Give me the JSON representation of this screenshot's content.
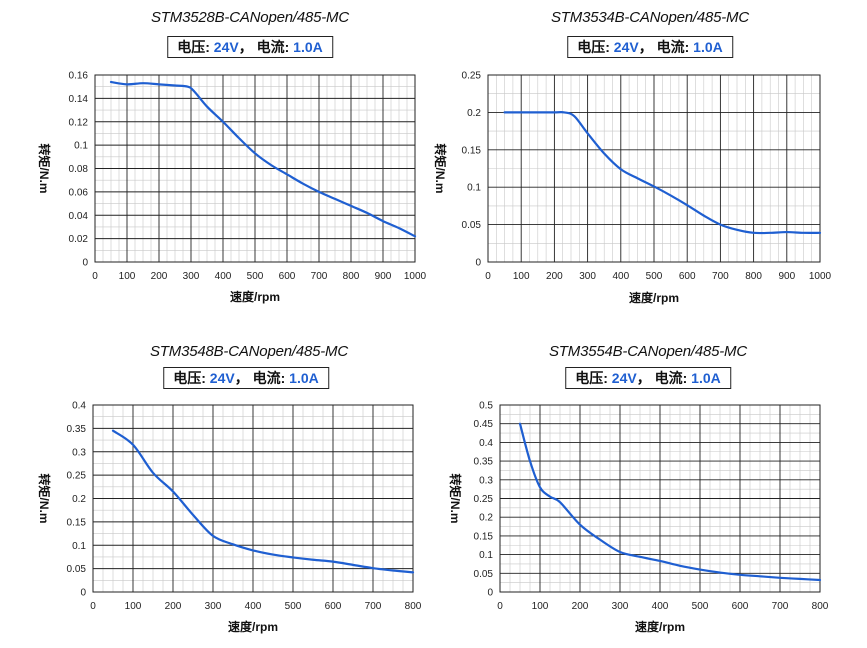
{
  "colors": {
    "curve": "#1f5fd1",
    "value_text": "#1f5fd1",
    "grid_major": "#222222",
    "grid_minor": "#c8c8c8"
  },
  "chart_data": [
    {
      "type": "line",
      "title": "STM3528B-CANopen/485-MC",
      "conditions": {
        "voltage_label": "电压:",
        "voltage": "24V",
        "sep": "，",
        "current_label": "电流:",
        "current": "1.0A"
      },
      "xlabel": "速度/rpm",
      "ylabel": "转矩/N.m",
      "xlim": [
        0,
        1000
      ],
      "ylim": [
        0,
        0.16
      ],
      "x_ticks": [
        0,
        100,
        200,
        300,
        400,
        500,
        600,
        700,
        800,
        900,
        1000
      ],
      "x_tick_labels": [
        "0",
        "100",
        "200",
        "300",
        "400",
        "500",
        "600",
        "700",
        "800",
        "900",
        "1000"
      ],
      "y_ticks": [
        0,
        0.02,
        0.04,
        0.06,
        0.08,
        0.1,
        0.12,
        0.14,
        0.16
      ],
      "y_tick_labels": [
        "0",
        "0.02",
        "0.04",
        "0.06",
        "0.08",
        "0.1",
        "0.12",
        "0.14",
        "0.16"
      ],
      "x_minor_divisions": 4,
      "y_minor_divisions": 2,
      "grid": true,
      "series": [
        {
          "x": [
            50,
            100,
            150,
            200,
            250,
            290,
            310,
            350,
            400,
            450,
            500,
            550,
            600,
            650,
            700,
            750,
            800,
            850,
            900,
            950,
            1000
          ],
          "y": [
            0.154,
            0.152,
            0.153,
            0.152,
            0.151,
            0.15,
            0.146,
            0.133,
            0.12,
            0.106,
            0.093,
            0.083,
            0.075,
            0.067,
            0.06,
            0.054,
            0.048,
            0.042,
            0.035,
            0.029,
            0.022
          ]
        }
      ]
    },
    {
      "type": "line",
      "title": "STM3534B-CANopen/485-MC",
      "conditions": {
        "voltage_label": "电压:",
        "voltage": "24V",
        "sep": "，",
        "current_label": "电流:",
        "current": "1.0A"
      },
      "xlabel": "速度/rpm",
      "ylabel": "转矩/N.m",
      "xlim": [
        0,
        1000
      ],
      "ylim": [
        0,
        0.25
      ],
      "x_ticks": [
        0,
        100,
        200,
        300,
        400,
        500,
        600,
        700,
        800,
        900,
        1000
      ],
      "x_tick_labels": [
        "0",
        "100",
        "200",
        "300",
        "400",
        "500",
        "600",
        "700",
        "800",
        "900",
        "1000"
      ],
      "y_ticks": [
        0,
        0.05,
        0.1,
        0.15,
        0.2,
        0.25
      ],
      "y_tick_labels": [
        "0",
        "0.05",
        "0.1",
        "0.15",
        "0.2",
        "0.25"
      ],
      "x_minor_divisions": 4,
      "y_minor_divisions": 2,
      "grid": true,
      "series": [
        {
          "x": [
            50,
            100,
            150,
            200,
            230,
            260,
            300,
            350,
            400,
            450,
            500,
            550,
            600,
            650,
            700,
            750,
            800,
            850,
            900,
            950,
            1000
          ],
          "y": [
            0.2,
            0.2,
            0.2,
            0.2,
            0.2,
            0.195,
            0.172,
            0.145,
            0.124,
            0.112,
            0.101,
            0.089,
            0.076,
            0.062,
            0.05,
            0.043,
            0.039,
            0.039,
            0.04,
            0.039,
            0.039
          ]
        }
      ]
    },
    {
      "type": "line",
      "title": "STM3548B-CANopen/485-MC",
      "conditions": {
        "voltage_label": "电压:",
        "voltage": "24V",
        "sep": "，",
        "current_label": "电流:",
        "current": "1.0A"
      },
      "xlabel": "速度/rpm",
      "ylabel": "转矩/N.m",
      "xlim": [
        0,
        800
      ],
      "ylim": [
        0,
        0.4
      ],
      "x_ticks": [
        0,
        100,
        200,
        300,
        400,
        500,
        600,
        700,
        800
      ],
      "x_tick_labels": [
        "0",
        "100",
        "200",
        "300",
        "400",
        "500",
        "600",
        "700",
        "800"
      ],
      "y_ticks": [
        0,
        0.05,
        0.1,
        0.15,
        0.2,
        0.25,
        0.3,
        0.35,
        0.4
      ],
      "y_tick_labels": [
        "0",
        "0.05",
        "0.1",
        "0.15",
        "0.2",
        "0.25",
        "0.3",
        "0.35",
        "0.4"
      ],
      "x_minor_divisions": 4,
      "y_minor_divisions": 2,
      "grid": true,
      "series": [
        {
          "x": [
            50,
            100,
            150,
            200,
            250,
            300,
            350,
            400,
            450,
            500,
            550,
            600,
            650,
            700,
            750,
            800
          ],
          "y": [
            0.345,
            0.315,
            0.255,
            0.215,
            0.165,
            0.12,
            0.102,
            0.089,
            0.08,
            0.074,
            0.069,
            0.065,
            0.058,
            0.051,
            0.046,
            0.042
          ]
        }
      ]
    },
    {
      "type": "line",
      "title": "STM3554B-CANopen/485-MC",
      "conditions": {
        "voltage_label": "电压:",
        "voltage": "24V",
        "sep": "，",
        "current_label": "电流:",
        "current": "1.0A"
      },
      "xlabel": "速度/rpm",
      "ylabel": "转矩/N.m",
      "xlim": [
        0,
        800
      ],
      "ylim": [
        0,
        0.5
      ],
      "x_ticks": [
        0,
        100,
        200,
        300,
        400,
        500,
        600,
        700,
        800
      ],
      "x_tick_labels": [
        "0",
        "100",
        "200",
        "300",
        "400",
        "500",
        "600",
        "700",
        "800"
      ],
      "y_ticks": [
        0,
        0.05,
        0.1,
        0.15,
        0.2,
        0.25,
        0.3,
        0.35,
        0.4,
        0.45,
        0.5
      ],
      "y_tick_labels": [
        "0",
        "0.05",
        "0.1",
        "0.15",
        "0.2",
        "0.25",
        "0.3",
        "0.35",
        "0.4",
        "0.45",
        "0.5"
      ],
      "x_minor_divisions": 4,
      "y_minor_divisions": 2,
      "grid": true,
      "series": [
        {
          "x": [
            50,
            75,
            100,
            125,
            150,
            200,
            250,
            300,
            350,
            400,
            450,
            500,
            550,
            600,
            650,
            700,
            750,
            800
          ],
          "y": [
            0.45,
            0.35,
            0.28,
            0.255,
            0.24,
            0.18,
            0.14,
            0.107,
            0.094,
            0.083,
            0.07,
            0.06,
            0.052,
            0.046,
            0.042,
            0.038,
            0.035,
            0.032
          ]
        }
      ]
    }
  ]
}
